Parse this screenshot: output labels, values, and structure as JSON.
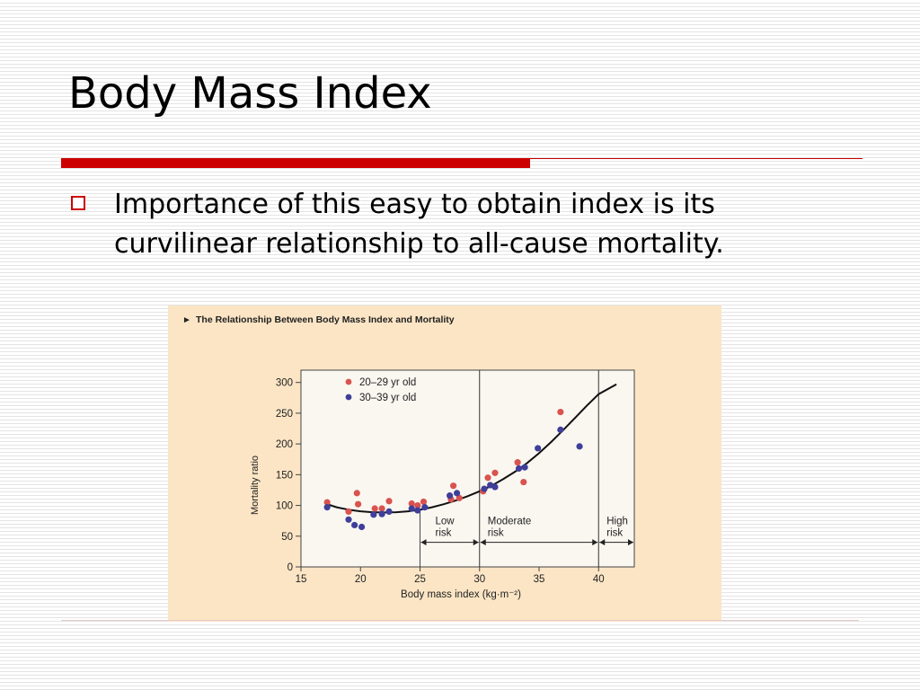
{
  "slide": {
    "title": "Body Mass Index",
    "bullet": "Importance of this easy to obtain index is its curvilinear relationship to all-cause mortality."
  },
  "colors": {
    "accent": "#cc0000",
    "figure_bg": "#fbe5c5",
    "series_20_29": "#d9534f",
    "series_30_39": "#3f3f99"
  },
  "chart_data": {
    "type": "scatter",
    "title": "The Relationship Between Body Mass Index and Mortality",
    "title_marker": "►",
    "xlabel": "Body mass index (kg·m⁻²)",
    "ylabel": "Mortality ratio",
    "xlim": [
      15,
      43
    ],
    "ylim": [
      0,
      320
    ],
    "x_ticks": [
      15,
      20,
      25,
      30,
      35,
      40
    ],
    "y_ticks": [
      0,
      50,
      100,
      150,
      200,
      250,
      300
    ],
    "grid": false,
    "legend_position": "top-left",
    "series": [
      {
        "name": "20–29 yr old",
        "color": "#d9534f",
        "points": [
          [
            17.2,
            105
          ],
          [
            19,
            90
          ],
          [
            19.7,
            120
          ],
          [
            19.8,
            102
          ],
          [
            21.2,
            95
          ],
          [
            21.8,
            95
          ],
          [
            22.4,
            107
          ],
          [
            24.3,
            103
          ],
          [
            24.8,
            100
          ],
          [
            25.3,
            106
          ],
          [
            27.6,
            110
          ],
          [
            27.8,
            132
          ],
          [
            28.3,
            112
          ],
          [
            30.3,
            123
          ],
          [
            30.7,
            145
          ],
          [
            31.3,
            153
          ],
          [
            33.2,
            170
          ],
          [
            33.7,
            138
          ],
          [
            36.8,
            252
          ]
        ]
      },
      {
        "name": "30–39 yr old",
        "color": "#3f3f99",
        "points": [
          [
            17.2,
            97
          ],
          [
            19,
            77
          ],
          [
            19.5,
            68
          ],
          [
            20.1,
            65
          ],
          [
            21.1,
            85
          ],
          [
            21.8,
            86
          ],
          [
            22.4,
            90
          ],
          [
            24.3,
            95
          ],
          [
            24.8,
            92
          ],
          [
            25.4,
            97
          ],
          [
            27.5,
            116
          ],
          [
            28.1,
            120
          ],
          [
            30.4,
            127
          ],
          [
            30.9,
            133
          ],
          [
            31.3,
            130
          ],
          [
            33.3,
            160
          ],
          [
            33.8,
            162
          ],
          [
            34.9,
            193
          ],
          [
            36.8,
            223
          ],
          [
            38.4,
            196
          ]
        ]
      }
    ],
    "fit_curve": [
      [
        17.2,
        102
      ],
      [
        18,
        97
      ],
      [
        19,
        93
      ],
      [
        20,
        90.5
      ],
      [
        21,
        89
      ],
      [
        22,
        88.5
      ],
      [
        23,
        89
      ],
      [
        24,
        90.5
      ],
      [
        25,
        93
      ],
      [
        26,
        97
      ],
      [
        27,
        102
      ],
      [
        28,
        108
      ],
      [
        29,
        115
      ],
      [
        30,
        123
      ],
      [
        31,
        132
      ],
      [
        32,
        143
      ],
      [
        33,
        155
      ],
      [
        34,
        169
      ],
      [
        35,
        185
      ],
      [
        36,
        203
      ],
      [
        37,
        222
      ],
      [
        38,
        242
      ],
      [
        39,
        262
      ],
      [
        40,
        281
      ],
      [
        41.5,
        297
      ]
    ],
    "zones": [
      {
        "label_lines": [
          "Low",
          "risk"
        ],
        "from": 25,
        "to": 30,
        "divider": "thin"
      },
      {
        "label_lines": [
          "Moderate",
          "risk"
        ],
        "from": 30,
        "to": 40,
        "divider": "full"
      },
      {
        "label_lines": [
          "High",
          "risk"
        ],
        "from": 40,
        "to": 43,
        "divider": "full"
      }
    ],
    "zone_arrow_y": 40
  }
}
